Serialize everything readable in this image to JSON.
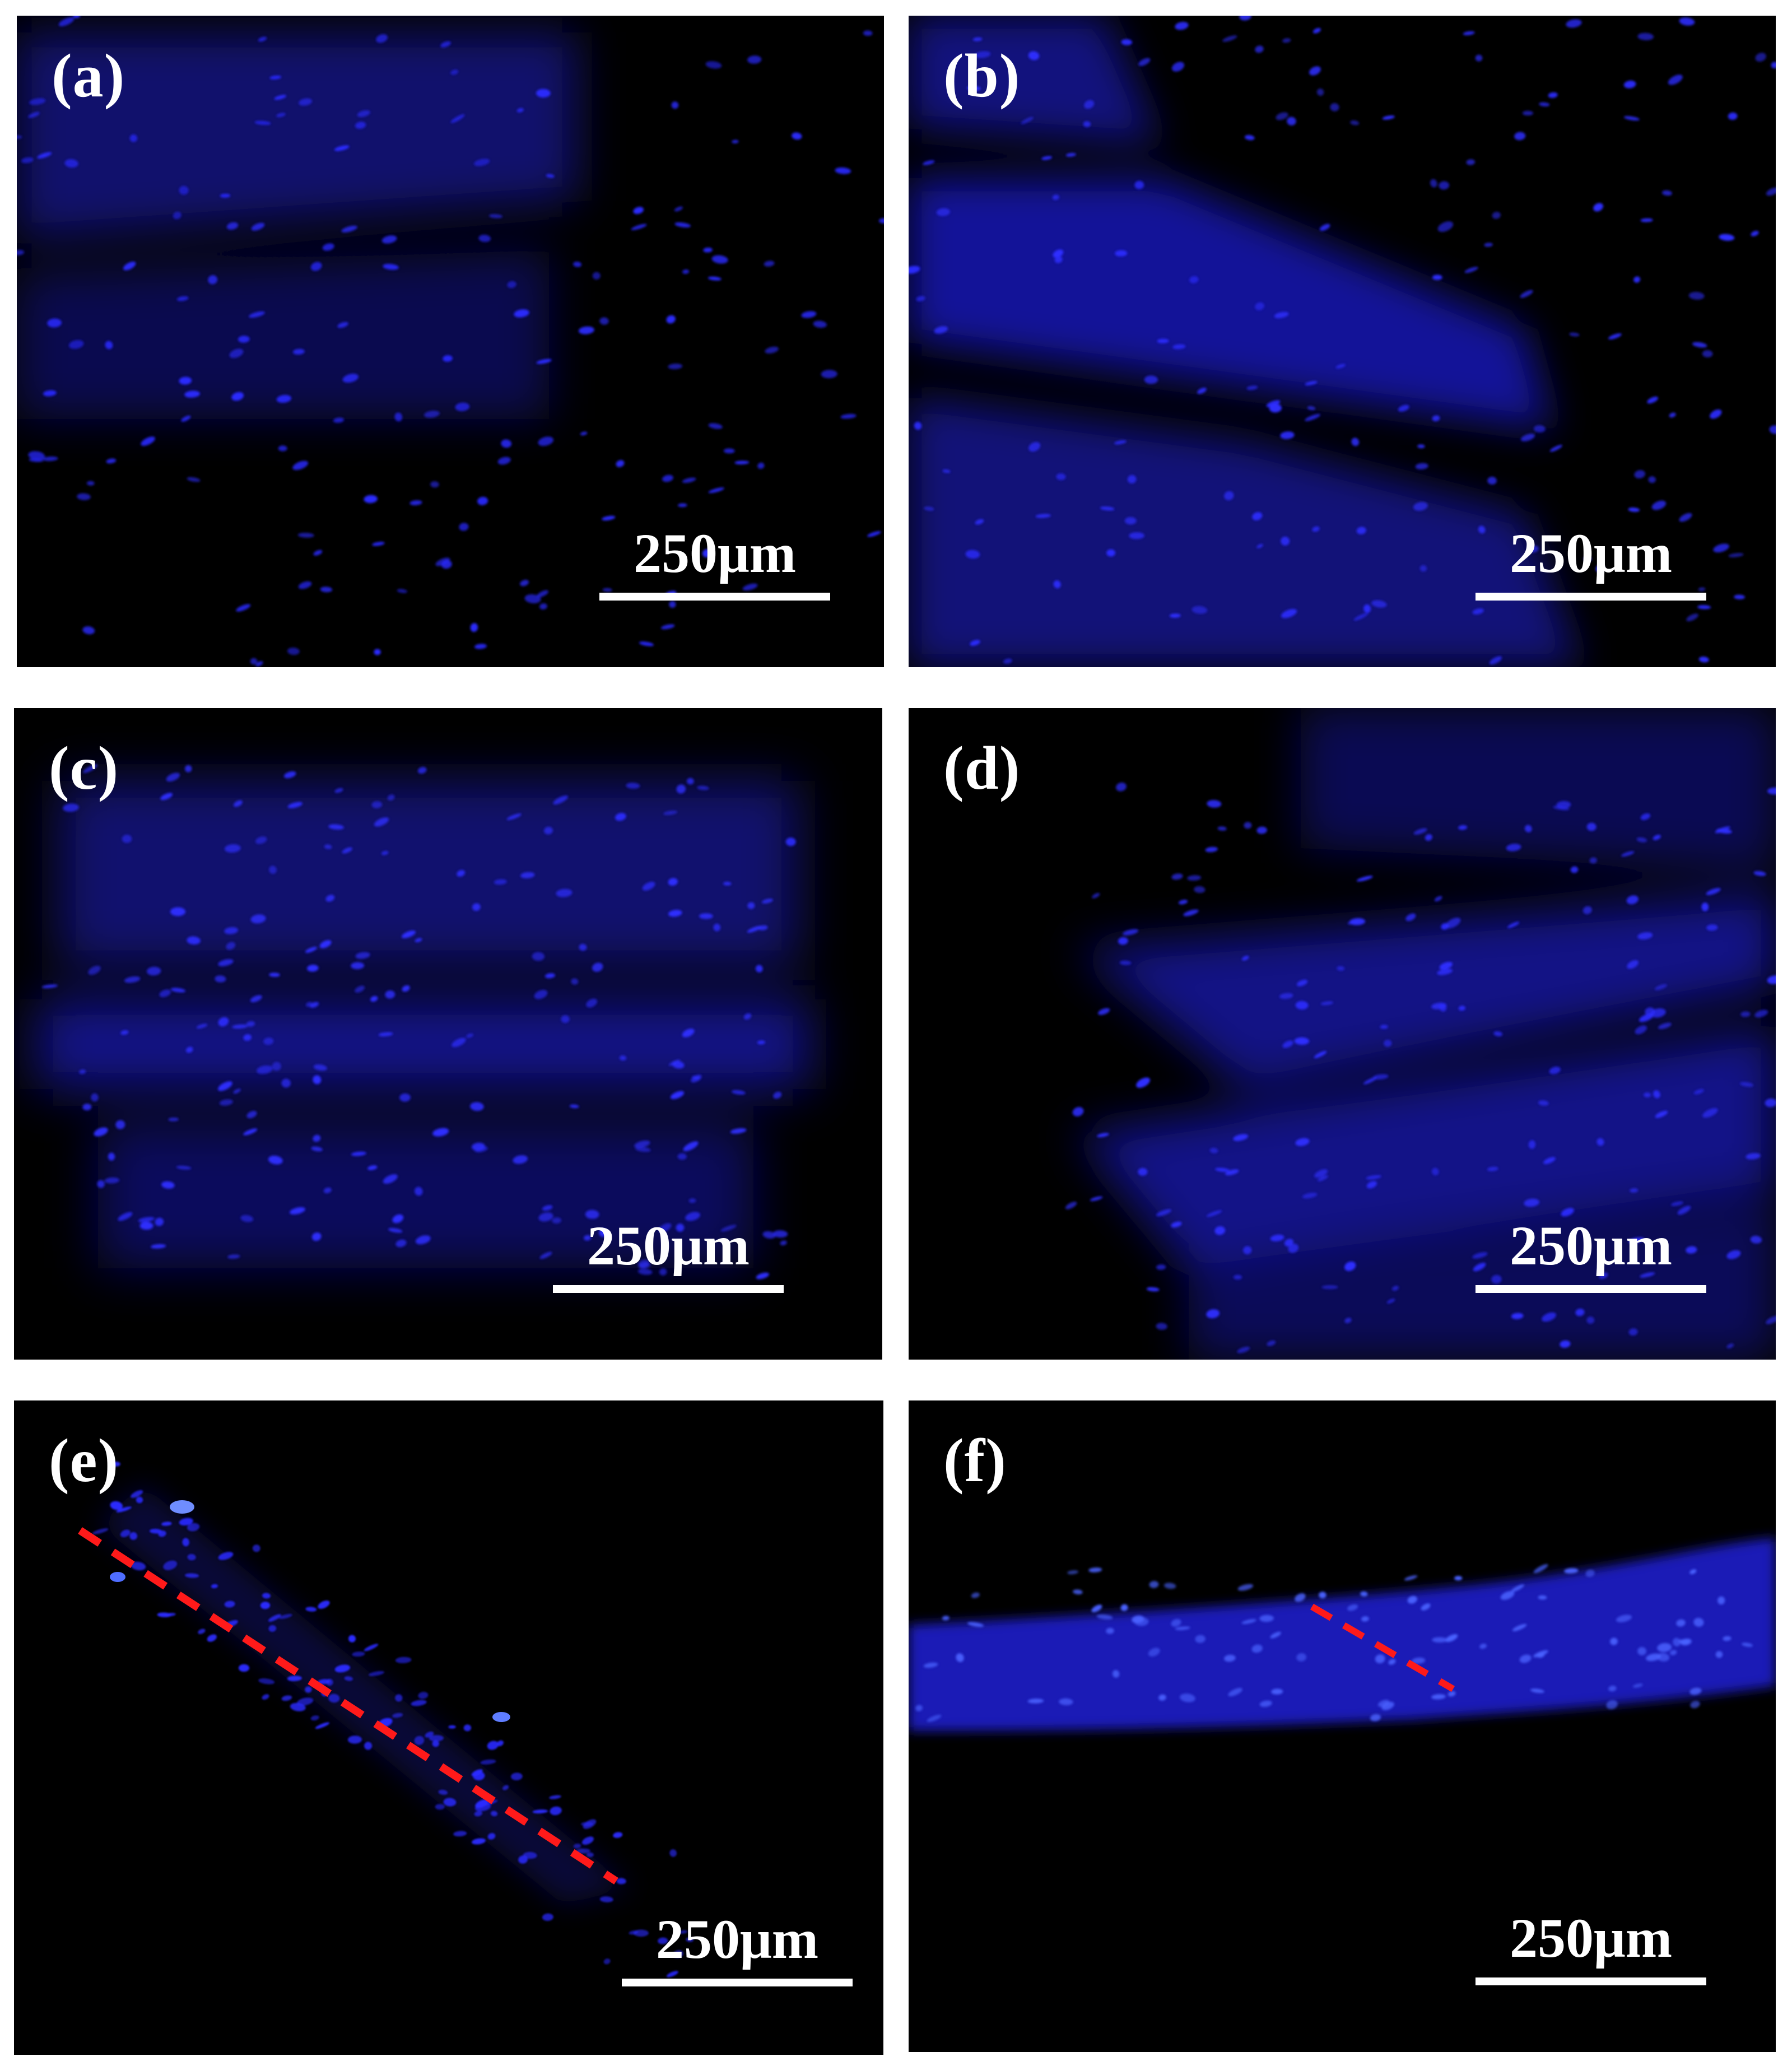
{
  "figure": {
    "background": "#ffffff",
    "panel_background": "#000000",
    "stain_color": "#1a1aff",
    "marker_color": "#ff1a1a",
    "panels": [
      {
        "id": "a",
        "label": "(a)",
        "scale_bar": "250μm"
      },
      {
        "id": "b",
        "label": "(b)",
        "scale_bar": "250μm"
      },
      {
        "id": "c",
        "label": "(c)",
        "scale_bar": "250μm"
      },
      {
        "id": "d",
        "label": "(d)",
        "scale_bar": "250μm"
      },
      {
        "id": "e",
        "label": "(e)",
        "scale_bar": "250μm"
      },
      {
        "id": "f",
        "label": "(f)",
        "scale_bar": "250μm"
      }
    ]
  }
}
